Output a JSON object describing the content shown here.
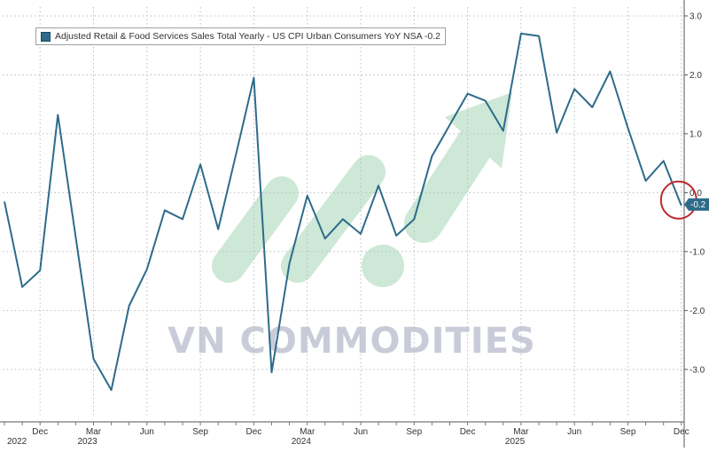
{
  "watermark": {
    "text": "VN COMMODITIES"
  },
  "chart_data": {
    "type": "line",
    "title": "",
    "xlabel": "",
    "ylabel": "",
    "legend": {
      "placement": "top-left"
    },
    "grid": true,
    "ylim": [
      -3.8,
      3.15
    ],
    "yticks": [
      3.0,
      2.0,
      1.0,
      0.0,
      -1.0,
      -2.0,
      -3.0
    ],
    "ytick_labels": [
      "3.0",
      "2.0",
      "1.0",
      "0.0",
      "-1.0",
      "-2.0",
      "-3.0"
    ],
    "x": [
      "2022-10",
      "2022-11",
      "2022-12",
      "2023-01",
      "2023-02",
      "2023-03",
      "2023-04",
      "2023-05",
      "2023-06",
      "2023-07",
      "2023-08",
      "2023-09",
      "2023-10",
      "2023-11",
      "2023-12",
      "2024-01",
      "2024-02",
      "2024-03",
      "2024-04",
      "2024-05",
      "2024-06",
      "2024-07",
      "2024-08",
      "2024-09",
      "2024-10",
      "2024-11",
      "2024-12",
      "2025-01",
      "2025-02",
      "2025-03",
      "2025-04",
      "2025-05",
      "2025-06",
      "2025-07",
      "2025-08",
      "2025-09",
      "2025-10",
      "2025-11",
      "2025-12"
    ],
    "xticks": [
      {
        "x": "2022-12",
        "label": "Dec"
      },
      {
        "x": "2023-03",
        "label": "Mar"
      },
      {
        "x": "2023-06",
        "label": "Jun"
      },
      {
        "x": "2023-09",
        "label": "Sep"
      },
      {
        "x": "2023-12",
        "label": "Dec"
      },
      {
        "x": "2024-03",
        "label": "Mar"
      },
      {
        "x": "2024-06",
        "label": "Jun"
      },
      {
        "x": "2024-09",
        "label": "Sep"
      },
      {
        "x": "2024-12",
        "label": "Dec"
      },
      {
        "x": "2025-03",
        "label": "Mar"
      },
      {
        "x": "2025-06",
        "label": "Jun"
      },
      {
        "x": "2025-09",
        "label": "Sep"
      },
      {
        "x": "2025-12",
        "label": "Dec"
      }
    ],
    "year_labels": [
      {
        "x": "2022-11",
        "label": "2022"
      },
      {
        "x": "2023-03",
        "label": "2023"
      },
      {
        "x": "2024-03",
        "label": "2024"
      },
      {
        "x": "2025-03",
        "label": "2025"
      }
    ],
    "series": [
      {
        "name": "Adjusted Retail & Food Services Sales Total Yearly - US CPI Urban Consumers YoY NSA -0.2",
        "color": "#2e6b8a",
        "values": [
          -0.15,
          -1.6,
          -1.32,
          1.32,
          -0.75,
          -2.82,
          -3.35,
          -1.92,
          -1.3,
          -0.3,
          -0.45,
          0.48,
          -0.62,
          0.65,
          1.95,
          -3.05,
          -1.2,
          -0.05,
          -0.78,
          -0.45,
          -0.7,
          0.12,
          -0.73,
          -0.45,
          0.62,
          1.15,
          1.68,
          1.56,
          1.05,
          2.7,
          2.66,
          1.02,
          1.76,
          1.45,
          2.06,
          1.1,
          0.2,
          0.54,
          -0.22
        ]
      }
    ],
    "last_value_label": "-0.2",
    "highlight": {
      "x": "2025-12",
      "y": -0.2,
      "color": "#c0282c"
    }
  }
}
